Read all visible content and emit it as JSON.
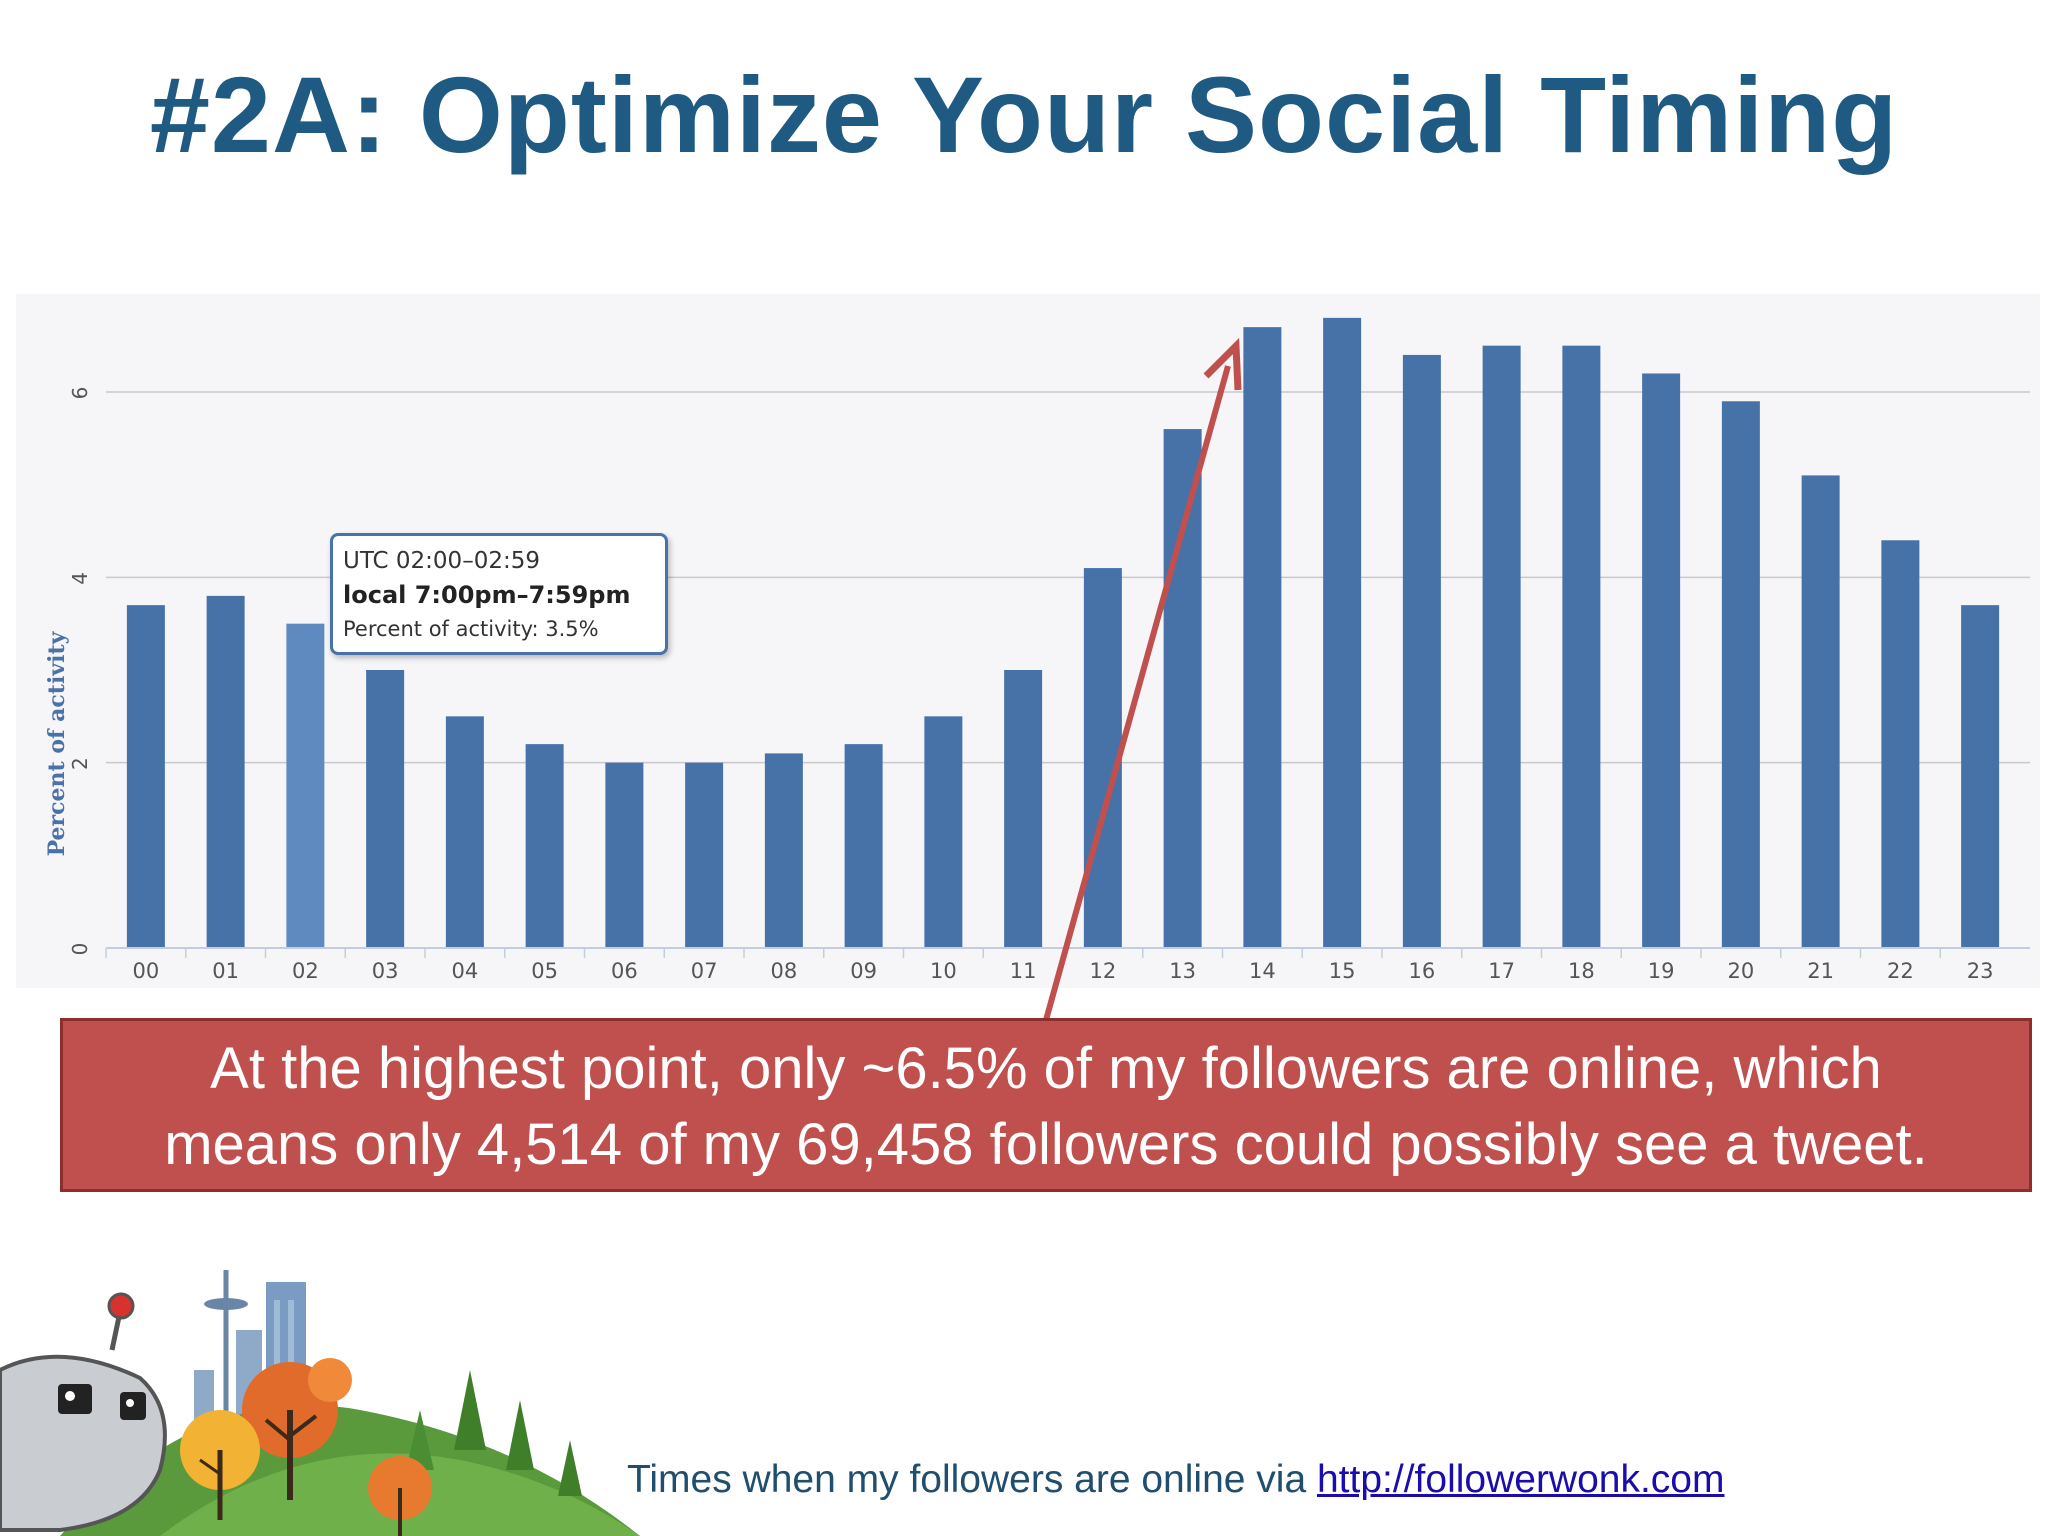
{
  "slide": {
    "title": "#2A: Optimize Your Social Timing",
    "callout_line1": "At the highest point, only ~6.5% of my followers are online, which",
    "callout_line2": "means only 4,514 of my 69,458 followers could possibly see a tweet.",
    "caption_text": "Times when my followers are online via ",
    "caption_link": "http://followerwonk.com"
  },
  "tooltip": {
    "utc": "UTC 02:00–02:59",
    "local": "local 7:00pm–7:59pm",
    "percent": "Percent of activity: 3.5%"
  },
  "colors": {
    "bar": "#4672a8",
    "bar_highlight": "#5f8ac0",
    "title": "#1f5a82",
    "callout": "#c0504d",
    "arrow": "#c0504d"
  },
  "chart_data": {
    "type": "bar",
    "categories": [
      "00",
      "01",
      "02",
      "03",
      "04",
      "05",
      "06",
      "07",
      "08",
      "09",
      "10",
      "11",
      "12",
      "13",
      "14",
      "15",
      "16",
      "17",
      "18",
      "19",
      "20",
      "21",
      "22",
      "23"
    ],
    "values": [
      3.7,
      3.8,
      3.5,
      3.0,
      2.5,
      2.2,
      2.0,
      2.0,
      2.1,
      2.2,
      2.5,
      3.0,
      4.1,
      5.6,
      6.7,
      6.8,
      6.4,
      6.5,
      6.5,
      6.2,
      5.9,
      5.1,
      4.4,
      3.7
    ],
    "highlight_index": 2,
    "title": "",
    "xlabel": "",
    "ylabel": "Percent of activity",
    "yticks": [
      0,
      2,
      4,
      6
    ],
    "ylim": [
      0,
      7
    ],
    "grid": true
  }
}
